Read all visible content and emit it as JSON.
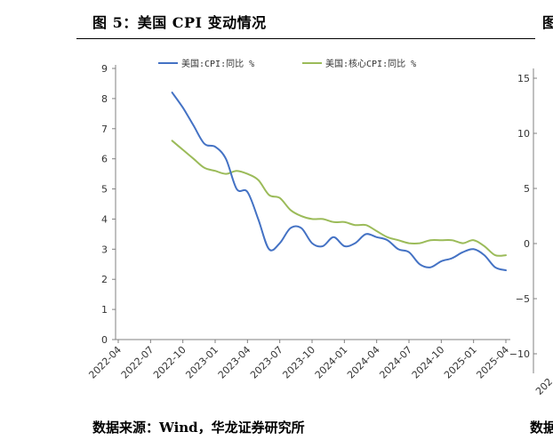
{
  "header": {
    "title": "图 5：美国 CPI 变动情况",
    "next_panel_title": "图"
  },
  "footer": {
    "source": "数据来源：Wind，华龙证券研究所",
    "next_panel_source": "数据"
  },
  "colors": {
    "cpi": "#4472C4",
    "core_cpi": "#9BBB59",
    "axis": "#808080"
  },
  "chart_data": [
    {
      "type": "line",
      "xlabel": "",
      "ylabel": "",
      "ylim": [
        0,
        9
      ],
      "yticks": [
        "0",
        "1",
        "2",
        "3",
        "4",
        "5",
        "6",
        "7",
        "8",
        "9"
      ],
      "xticks": [
        "2022-04",
        "2022-07",
        "2022-10",
        "2023-01",
        "2023-04",
        "2023-07",
        "2023-10",
        "2024-01",
        "2024-04",
        "2024-07",
        "2024-10",
        "2025-01",
        "2025-04"
      ],
      "grid": false,
      "legend": "top",
      "series": [
        {
          "name": "美国:CPI:同比 %",
          "x": [
            "2022-09",
            "2022-10",
            "2022-11",
            "2022-12",
            "2023-01",
            "2023-02",
            "2023-03",
            "2023-04",
            "2023-05",
            "2023-06",
            "2023-07",
            "2023-08",
            "2023-09",
            "2023-10",
            "2023-11",
            "2023-12",
            "2024-01",
            "2024-02",
            "2024-03",
            "2024-04",
            "2024-05",
            "2024-06",
            "2024-07",
            "2024-08",
            "2024-09",
            "2024-10",
            "2024-11",
            "2024-12",
            "2025-01",
            "2025-02",
            "2025-03",
            "2025-04"
          ],
          "values": [
            8.2,
            7.7,
            7.1,
            6.5,
            6.4,
            6.0,
            5.0,
            4.9,
            4.0,
            3.0,
            3.2,
            3.7,
            3.7,
            3.2,
            3.1,
            3.4,
            3.1,
            3.2,
            3.5,
            3.4,
            3.3,
            3.0,
            2.9,
            2.5,
            2.4,
            2.6,
            2.7,
            2.9,
            3.0,
            2.8,
            2.4,
            2.3
          ]
        },
        {
          "name": "美国:核心CPI:同比 %",
          "x": [
            "2022-09",
            "2022-10",
            "2022-11",
            "2022-12",
            "2023-01",
            "2023-02",
            "2023-03",
            "2023-04",
            "2023-05",
            "2023-06",
            "2023-07",
            "2023-08",
            "2023-09",
            "2023-10",
            "2023-11",
            "2023-12",
            "2024-01",
            "2024-02",
            "2024-03",
            "2024-04",
            "2024-05",
            "2024-06",
            "2024-07",
            "2024-08",
            "2024-09",
            "2024-10",
            "2024-11",
            "2024-12",
            "2025-01",
            "2025-02",
            "2025-03",
            "2025-04"
          ],
          "values": [
            6.6,
            6.3,
            6.0,
            5.7,
            5.6,
            5.5,
            5.6,
            5.5,
            5.3,
            4.8,
            4.7,
            4.3,
            4.1,
            4.0,
            4.0,
            3.9,
            3.9,
            3.8,
            3.8,
            3.6,
            3.4,
            3.3,
            3.2,
            3.2,
            3.3,
            3.3,
            3.3,
            3.2,
            3.3,
            3.1,
            2.8,
            2.8
          ]
        }
      ]
    },
    {
      "type": "line",
      "partial": true,
      "yticks": [
        "15",
        "10",
        "5",
        "0",
        "−5",
        "−10"
      ],
      "xticks": [
        "202"
      ]
    }
  ]
}
